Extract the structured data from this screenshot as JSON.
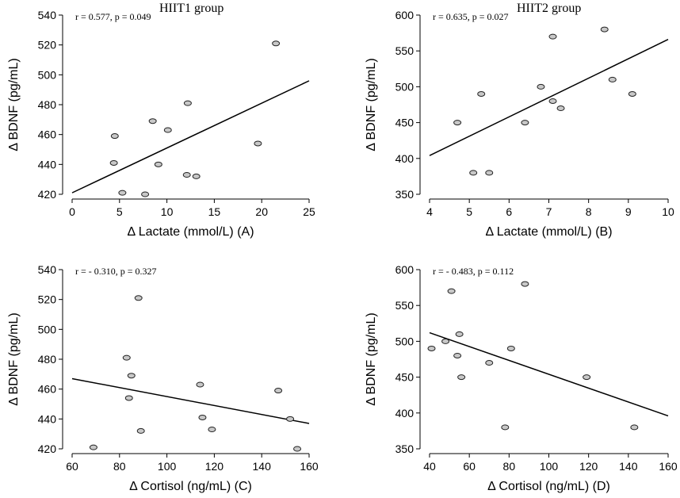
{
  "chart_data": [
    {
      "type": "scatter",
      "panel": "A",
      "title": "HIIT1 group",
      "stat": "r = 0.577, p = 0.049",
      "xlabel": "Δ Lactate (mmol/L) (A)",
      "ylabel": "Δ BDNF (pg/mL)",
      "xlim": [
        0,
        25
      ],
      "ylim": [
        420,
        540
      ],
      "xticks": [
        0,
        5,
        10,
        15,
        20,
        25
      ],
      "yticks": [
        420,
        440,
        460,
        480,
        500,
        520,
        540
      ],
      "points": [
        {
          "x": 4.4,
          "y": 441
        },
        {
          "x": 4.5,
          "y": 459
        },
        {
          "x": 5.3,
          "y": 421
        },
        {
          "x": 7.7,
          "y": 420
        },
        {
          "x": 8.5,
          "y": 469
        },
        {
          "x": 9.1,
          "y": 440
        },
        {
          "x": 10.1,
          "y": 463
        },
        {
          "x": 12.1,
          "y": 433
        },
        {
          "x": 12.2,
          "y": 481
        },
        {
          "x": 13.1,
          "y": 432
        },
        {
          "x": 19.6,
          "y": 454
        },
        {
          "x": 21.5,
          "y": 521
        }
      ],
      "fit": [
        {
          "x": 0,
          "y": 421
        },
        {
          "x": 25,
          "y": 496
        }
      ]
    },
    {
      "type": "scatter",
      "panel": "B",
      "title": "HIIT2 group",
      "stat": "r = 0.635, p = 0.027",
      "xlabel": "Δ Lactate (mmol/L) (B)",
      "ylabel": "Δ BDNF (pg/mL)",
      "xlim": [
        4,
        10
      ],
      "ylim": [
        350,
        600
      ],
      "xticks": [
        4,
        5,
        6,
        7,
        8,
        9,
        10
      ],
      "yticks": [
        350,
        400,
        450,
        500,
        550,
        600
      ],
      "points": [
        {
          "x": 4.7,
          "y": 450
        },
        {
          "x": 5.1,
          "y": 380
        },
        {
          "x": 5.3,
          "y": 490
        },
        {
          "x": 5.5,
          "y": 380
        },
        {
          "x": 6.4,
          "y": 450
        },
        {
          "x": 6.8,
          "y": 500
        },
        {
          "x": 7.1,
          "y": 480
        },
        {
          "x": 7.1,
          "y": 570
        },
        {
          "x": 7.3,
          "y": 470
        },
        {
          "x": 8.4,
          "y": 580
        },
        {
          "x": 8.6,
          "y": 510
        },
        {
          "x": 9.1,
          "y": 490
        }
      ],
      "fit": [
        {
          "x": 4,
          "y": 404
        },
        {
          "x": 10,
          "y": 566
        }
      ]
    },
    {
      "type": "scatter",
      "panel": "C",
      "title": "",
      "stat": "r = - 0.310, p = 0.327",
      "xlabel": "Δ Cortisol (ng/mL) (C)",
      "ylabel": "Δ BDNF (pg/mL)",
      "xlim": [
        60,
        160
      ],
      "ylim": [
        420,
        540
      ],
      "xticks": [
        60,
        80,
        100,
        120,
        140,
        160
      ],
      "yticks": [
        420,
        440,
        460,
        480,
        500,
        520,
        540
      ],
      "points": [
        {
          "x": 69,
          "y": 421
        },
        {
          "x": 83,
          "y": 481
        },
        {
          "x": 84,
          "y": 454
        },
        {
          "x": 85,
          "y": 469
        },
        {
          "x": 88,
          "y": 521
        },
        {
          "x": 89,
          "y": 432
        },
        {
          "x": 114,
          "y": 463
        },
        {
          "x": 115,
          "y": 441
        },
        {
          "x": 119,
          "y": 433
        },
        {
          "x": 147,
          "y": 459
        },
        {
          "x": 152,
          "y": 440
        },
        {
          "x": 155,
          "y": 420
        }
      ],
      "fit": [
        {
          "x": 60,
          "y": 467
        },
        {
          "x": 160,
          "y": 437
        }
      ]
    },
    {
      "type": "scatter",
      "panel": "D",
      "title": "",
      "stat": "r = - 0.483, p = 0.112",
      "xlabel": "Δ Cortisol (ng/mL) (D)",
      "ylabel": "Δ BDNF (pg/mL)",
      "xlim": [
        40,
        160
      ],
      "ylim": [
        350,
        600
      ],
      "xticks": [
        40,
        60,
        80,
        100,
        120,
        140,
        160
      ],
      "yticks": [
        350,
        400,
        450,
        500,
        550,
        600
      ],
      "points": [
        {
          "x": 41,
          "y": 490
        },
        {
          "x": 48,
          "y": 500
        },
        {
          "x": 51,
          "y": 570
        },
        {
          "x": 54,
          "y": 480
        },
        {
          "x": 55,
          "y": 510
        },
        {
          "x": 56,
          "y": 450
        },
        {
          "x": 70,
          "y": 470
        },
        {
          "x": 78,
          "y": 380
        },
        {
          "x": 81,
          "y": 490
        },
        {
          "x": 88,
          "y": 580
        },
        {
          "x": 119,
          "y": 450
        },
        {
          "x": 143,
          "y": 380
        }
      ],
      "fit": [
        {
          "x": 40,
          "y": 512
        },
        {
          "x": 160,
          "y": 396
        }
      ]
    }
  ]
}
